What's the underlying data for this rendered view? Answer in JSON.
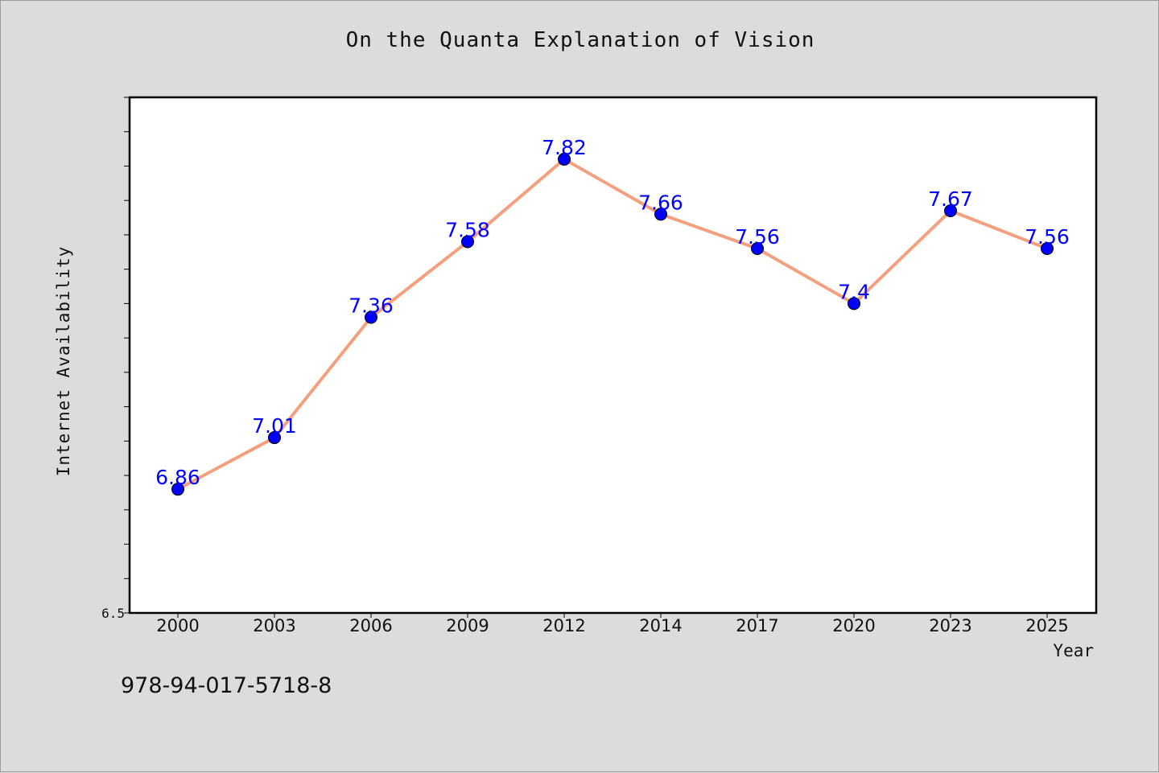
{
  "chart_data": {
    "type": "line",
    "title": "On the Quanta Explanation of Vision",
    "xlabel": "Year",
    "ylabel": "Internet Availability",
    "categories": [
      "2000",
      "2003",
      "2006",
      "2009",
      "2012",
      "2014",
      "2017",
      "2020",
      "2023",
      "2025"
    ],
    "series": [
      {
        "values": [
          6.86,
          7.01,
          7.36,
          7.58,
          7.82,
          7.66,
          7.56,
          7.4,
          7.67,
          7.56
        ],
        "data_labels": [
          "6.86",
          "7.01",
          "7.36",
          "7.58",
          "7.82",
          "7.66",
          "7.56",
          "7.4",
          "7.67",
          "7.56"
        ]
      }
    ],
    "ylim": [
      6.5,
      8.0
    ],
    "y_tick_labels": [
      "6.5"
    ],
    "grid": false,
    "colors": {
      "line": "#f4a07f",
      "marker": "#0000ff",
      "label": "#0000ff"
    }
  },
  "footer": {
    "code": "978-94-017-5718-8"
  }
}
